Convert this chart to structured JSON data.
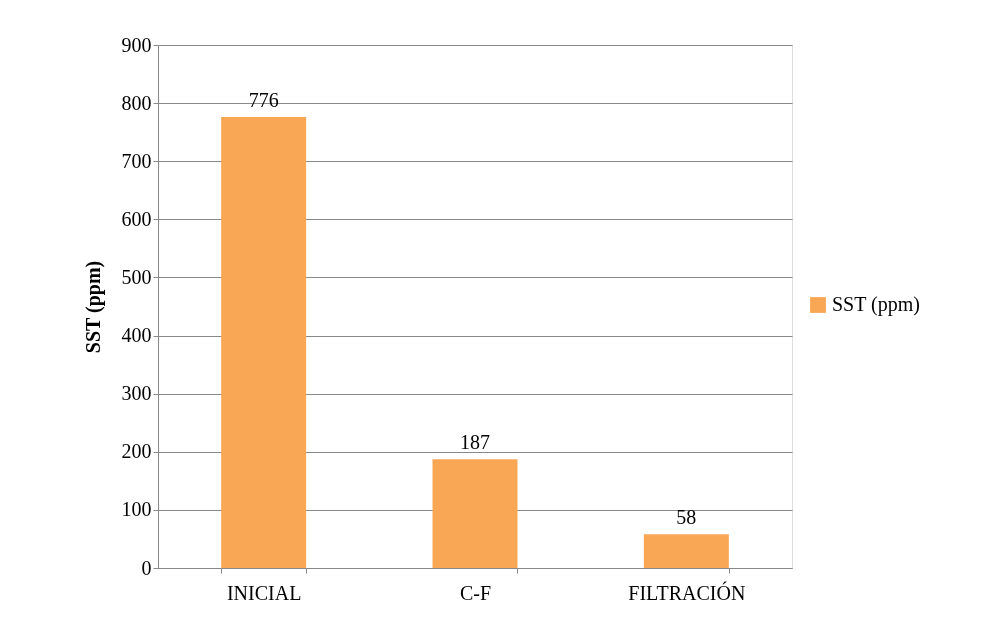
{
  "chart_data": {
    "type": "bar",
    "ylabel": "SST (ppm)",
    "categories": [
      "INICIAL",
      "C-F",
      "FILTRACIÓN"
    ],
    "series": [
      {
        "name": "SST (ppm)",
        "color": "#f9a655",
        "values": [
          776,
          187,
          58
        ]
      }
    ],
    "ylim": [
      0,
      900
    ],
    "yticks": [
      0,
      100,
      200,
      300,
      400,
      500,
      600,
      700,
      800,
      900
    ],
    "grid": "y",
    "legend": "right",
    "data_labels": true
  }
}
